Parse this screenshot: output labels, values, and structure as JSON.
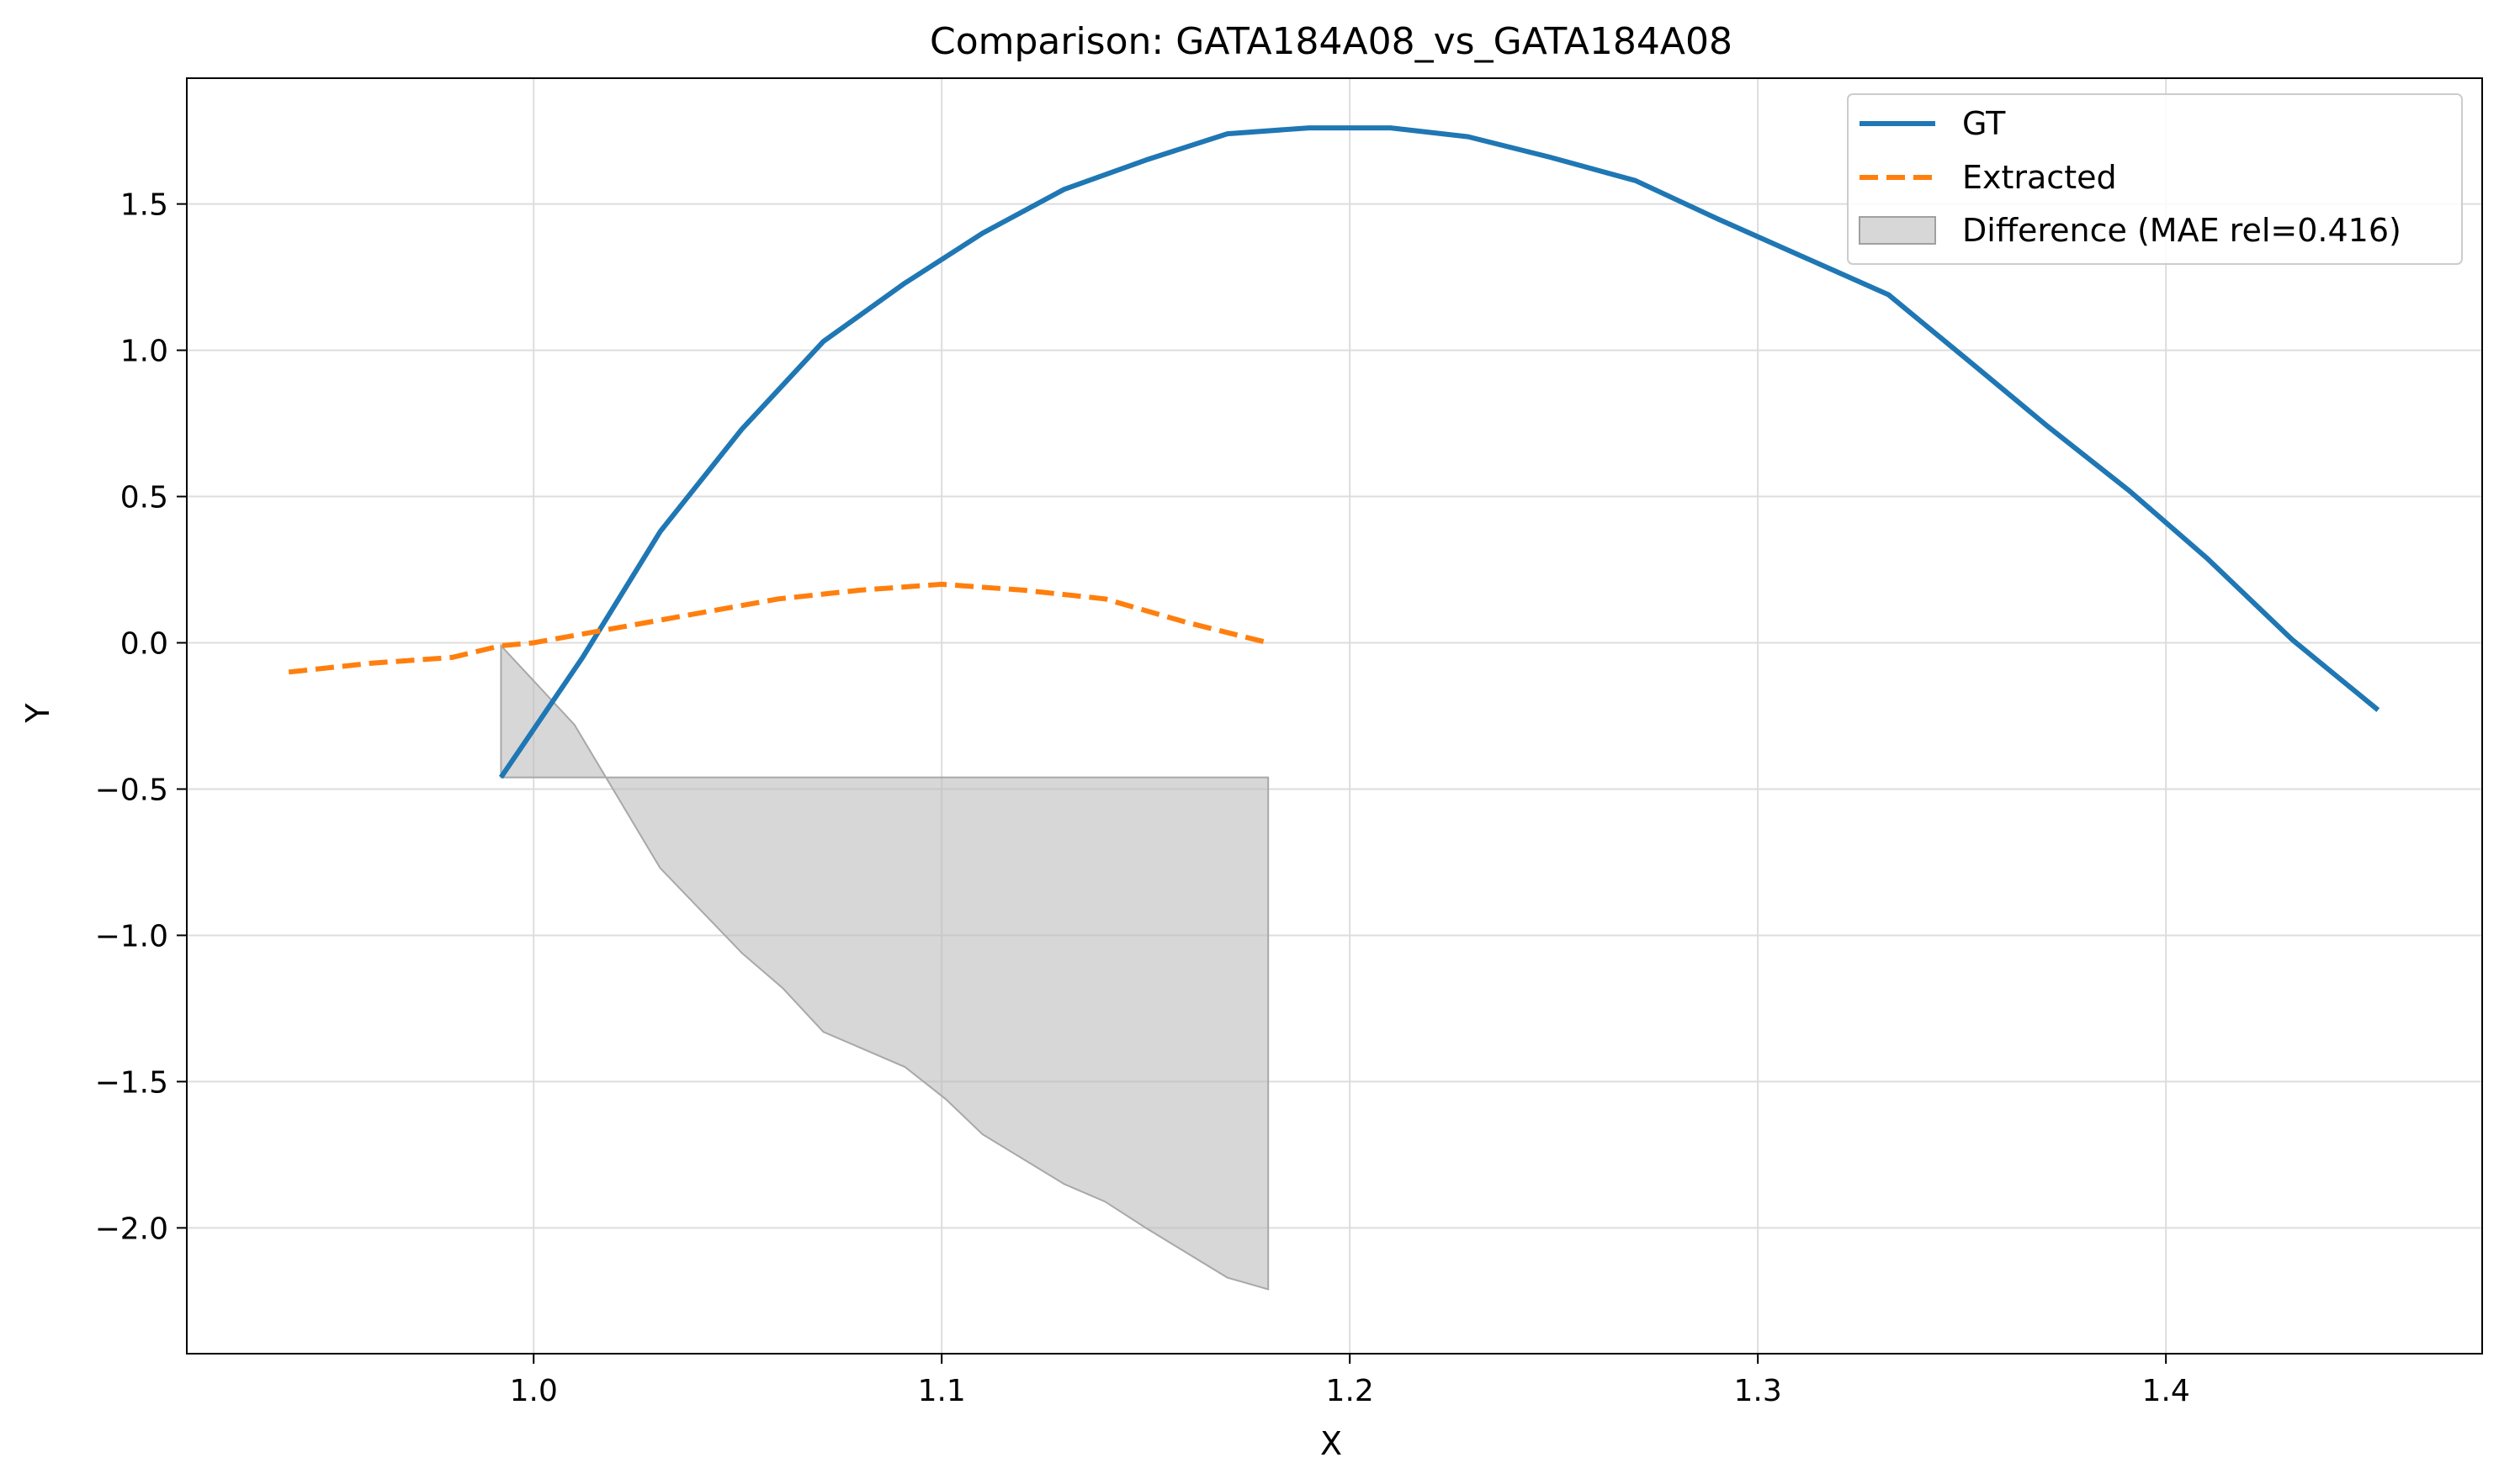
{
  "chart_data": {
    "type": "line",
    "title": "Comparison: GATA184A08_vs_GATA184A08",
    "xlabel": "X",
    "ylabel": "Y",
    "xlim": [
      0.915,
      1.4775
    ],
    "ylim": [
      -2.43,
      1.93
    ],
    "grid": true,
    "legend_position": "top-right",
    "x_ticks": [
      {
        "value": 1.0,
        "label": "1.0"
      },
      {
        "value": 1.1,
        "label": "1.1"
      },
      {
        "value": 1.2,
        "label": "1.2"
      },
      {
        "value": 1.3,
        "label": "1.3"
      },
      {
        "value": 1.4,
        "label": "1.4"
      }
    ],
    "y_ticks": [
      {
        "value": 1.5,
        "label": "1.5"
      },
      {
        "value": 1.0,
        "label": "1.0"
      },
      {
        "value": 0.5,
        "label": "0.5"
      },
      {
        "value": 0.0,
        "label": "0.0"
      },
      {
        "value": -0.5,
        "label": "−0.5"
      },
      {
        "value": -1.0,
        "label": "−1.0"
      },
      {
        "value": -1.5,
        "label": "−1.5"
      },
      {
        "value": -2.0,
        "label": "−2.0"
      }
    ],
    "series": [
      {
        "name": "GT",
        "color": "#1f77b4",
        "style": "solid",
        "points": [
          [
            0.992,
            -0.46
          ],
          [
            1.012,
            -0.05
          ],
          [
            1.031,
            0.38
          ],
          [
            1.051,
            0.73
          ],
          [
            1.071,
            1.03
          ],
          [
            1.091,
            1.23
          ],
          [
            1.11,
            1.4
          ],
          [
            1.13,
            1.55
          ],
          [
            1.15,
            1.65
          ],
          [
            1.17,
            1.74
          ],
          [
            1.19,
            1.76
          ],
          [
            1.21,
            1.76
          ],
          [
            1.229,
            1.73
          ],
          [
            1.249,
            1.66
          ],
          [
            1.27,
            1.58
          ],
          [
            1.29,
            1.45
          ],
          [
            1.311,
            1.32
          ],
          [
            1.332,
            1.19
          ],
          [
            1.352,
            0.96
          ],
          [
            1.371,
            0.74
          ],
          [
            1.391,
            0.52
          ],
          [
            1.41,
            0.29
          ],
          [
            1.431,
            0.01
          ],
          [
            1.452,
            -0.23
          ]
        ]
      },
      {
        "name": "Extracted",
        "color": "#ff7f0e",
        "style": "dashed",
        "points": [
          [
            0.94,
            -0.1
          ],
          [
            0.96,
            -0.07
          ],
          [
            0.98,
            -0.05
          ],
          [
            0.992,
            -0.01
          ],
          [
            1.0,
            0.0
          ],
          [
            1.02,
            0.05
          ],
          [
            1.04,
            0.1
          ],
          [
            1.06,
            0.15
          ],
          [
            1.08,
            0.18
          ],
          [
            1.1,
            0.2
          ],
          [
            1.12,
            0.18
          ],
          [
            1.14,
            0.15
          ],
          [
            1.16,
            0.07
          ],
          [
            1.18,
            0.0
          ]
        ]
      }
    ],
    "difference": {
      "name": "Difference (MAE rel=0.416)",
      "color": "#bdbdbd",
      "baseline": -0.46,
      "x_range": [
        0.992,
        1.18
      ],
      "points": [
        [
          0.992,
          -0.01
        ],
        [
          1.01,
          -0.28
        ],
        [
          1.031,
          -0.77
        ],
        [
          1.051,
          -1.06
        ],
        [
          1.061,
          -1.18
        ],
        [
          1.071,
          -1.33
        ],
        [
          1.091,
          -1.45
        ],
        [
          1.101,
          -1.56
        ],
        [
          1.11,
          -1.68
        ],
        [
          1.13,
          -1.85
        ],
        [
          1.14,
          -1.91
        ],
        [
          1.15,
          -2.0
        ],
        [
          1.17,
          -2.17
        ],
        [
          1.18,
          -2.21
        ]
      ]
    }
  }
}
